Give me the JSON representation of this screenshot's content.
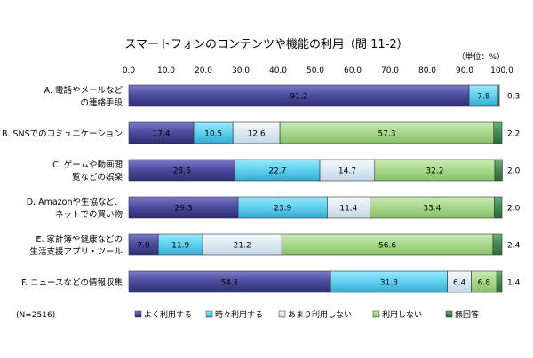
{
  "chart_data": {
    "type": "bar",
    "orientation": "horizontal",
    "stacked": true,
    "title": "スマートフォンのコンテンツや機能の利用（問 11-2）",
    "unit_label": "（単位：%）",
    "note": "(N=2516)",
    "xlim": [
      0,
      100
    ],
    "x_ticks": [
      "0.0",
      "10.0",
      "20.0",
      "30.0",
      "40.0",
      "50.0",
      "60.0",
      "70.0",
      "80.0",
      "90.0",
      "100.0"
    ],
    "grid": false,
    "legend_position": "bottom",
    "categories": [
      [
        "A. 電話やメールなど",
        "の連絡手段"
      ],
      [
        "B. SNSでのコミュニケーション"
      ],
      [
        "C. ゲームや動画閲",
        "覧などの娯楽"
      ],
      [
        "D. Amazonや生協など、",
        "ネットでの買い物"
      ],
      [
        "E. 家計簿や健康などの",
        "生活支援アプリ・ツール"
      ],
      [
        "F. ニュースなどの情報収集"
      ]
    ],
    "series": [
      {
        "name": "よく利用する",
        "color": "#4a4a9e",
        "values": [
          91.2,
          17.4,
          28.5,
          29.3,
          7.9,
          54.1
        ]
      },
      {
        "name": "時々利用する",
        "color": "#5fd0f0",
        "values": [
          7.8,
          10.5,
          22.7,
          23.9,
          11.9,
          31.3
        ]
      },
      {
        "name": "あまり利用しない",
        "color": "#dce9f2",
        "values": [
          0.0,
          12.6,
          14.7,
          11.4,
          21.2,
          6.4
        ]
      },
      {
        "name": "利用しない",
        "color": "#a7d88a",
        "values": [
          0.0,
          57.3,
          32.2,
          33.4,
          56.6,
          6.8
        ]
      },
      {
        "name": "無回答",
        "color": "#3f8a4e",
        "values": [
          0.3,
          2.2,
          2.0,
          2.0,
          2.4,
          1.4
        ]
      }
    ],
    "labels": [
      [
        "91.2",
        "7.8",
        "",
        "",
        "0.3"
      ],
      [
        "17.4",
        "10.5",
        "12.6",
        "57.3",
        "2.2"
      ],
      [
        "28.5",
        "22.7",
        "14.7",
        "32.2",
        "2.0"
      ],
      [
        "29.3",
        "23.9",
        "11.4",
        "33.4",
        "2.0"
      ],
      [
        "7.9",
        "11.9",
        "21.2",
        "56.6",
        "2.4"
      ],
      [
        "54.1",
        "31.3",
        "6.4",
        "6.8",
        "1.4"
      ]
    ]
  }
}
